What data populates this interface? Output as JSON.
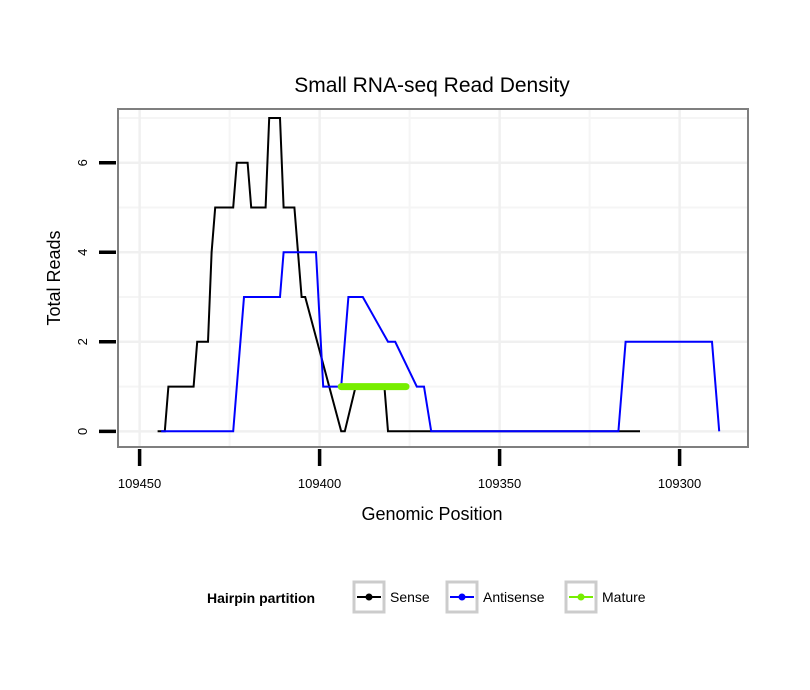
{
  "chart_data": {
    "type": "line",
    "title": "Small RNA-seq Read Density",
    "xlabel": "Genomic Position",
    "ylabel": "Total Reads",
    "xlim": [
      109456,
      109281
    ],
    "ylim": [
      -0.35,
      7.2
    ],
    "x_reversed": true,
    "x_ticks": [
      109450,
      109400,
      109350,
      109300
    ],
    "x_tick_labels": [
      "109450",
      "109400",
      "109350",
      "109300"
    ],
    "y_ticks": [
      0,
      2,
      4,
      6
    ],
    "y_tick_labels": [
      "0",
      "2",
      "4",
      "6"
    ],
    "grid": true,
    "legend": {
      "title": "Hairpin partition",
      "position": "bottom",
      "entries": [
        "Sense",
        "Antisense",
        "Mature"
      ]
    },
    "series": [
      {
        "name": "Sense",
        "color": "#000000",
        "x": [
          109445,
          109443,
          109442,
          109435,
          109434,
          109431,
          109430,
          109429,
          109428,
          109424,
          109423,
          109420,
          109419,
          109418,
          109417,
          109415,
          109414,
          109411,
          109410,
          109409,
          109408,
          109407,
          109406,
          109405,
          109404,
          109394,
          109393,
          109390,
          109382,
          109381,
          109311
        ],
        "y": [
          0,
          0,
          1,
          1,
          2,
          2,
          4,
          5,
          5,
          5,
          6,
          6,
          5,
          5,
          5,
          5,
          7,
          7,
          5,
          5,
          5,
          5,
          4,
          3,
          3,
          0,
          0,
          1,
          1,
          0,
          0
        ]
      },
      {
        "name": "Antisense",
        "color": "#0000ff",
        "x": [
          109444,
          109424,
          109421,
          109411,
          109410,
          109401,
          109399,
          109394,
          109392,
          109389,
          109388,
          109381,
          109379,
          109373,
          109371,
          109369,
          109348,
          109317,
          109315,
          109291,
          109289
        ],
        "y": [
          0,
          0,
          3,
          3,
          4,
          4,
          1,
          1,
          3,
          3,
          3,
          2,
          2,
          1,
          1,
          0,
          0,
          0,
          2,
          2,
          0
        ]
      },
      {
        "name": "Mature",
        "color": "#77ee00",
        "x": [
          109394,
          109376
        ],
        "y": [
          1,
          1
        ]
      }
    ]
  }
}
